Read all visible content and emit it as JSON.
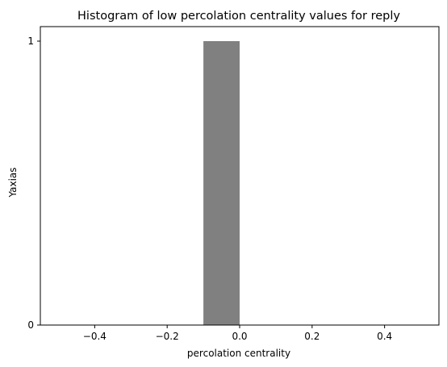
{
  "chart_data": {
    "type": "bar",
    "title": "Histogram of low percolation centrality values for reply",
    "xlabel": "percolation centrality",
    "ylabel": "Yaxias",
    "xlim": [
      -0.55,
      0.55
    ],
    "ylim": [
      0,
      1
    ],
    "x_ticks": [
      -0.4,
      -0.2,
      0.0,
      0.2,
      0.4
    ],
    "x_tick_labels": [
      "−0.4",
      "−0.2",
      "0.0",
      "0.2",
      "0.4"
    ],
    "y_ticks": [
      0,
      1
    ],
    "y_tick_labels": [
      "0",
      "1"
    ],
    "bins": [
      {
        "x0": -0.5,
        "x1": -0.4,
        "value": 0
      },
      {
        "x0": -0.4,
        "x1": -0.3,
        "value": 0
      },
      {
        "x0": -0.3,
        "x1": -0.2,
        "value": 0
      },
      {
        "x0": -0.2,
        "x1": -0.1,
        "value": 0
      },
      {
        "x0": -0.1,
        "x1": 0.0,
        "value": 1
      },
      {
        "x0": 0.0,
        "x1": 0.1,
        "value": 0
      },
      {
        "x0": 0.1,
        "x1": 0.2,
        "value": 0
      },
      {
        "x0": 0.2,
        "x1": 0.3,
        "value": 0
      },
      {
        "x0": 0.3,
        "x1": 0.4,
        "value": 0
      },
      {
        "x0": 0.4,
        "x1": 0.5,
        "value": 0
      }
    ],
    "bar_color": "#808080",
    "grid": false,
    "legend": "none"
  }
}
